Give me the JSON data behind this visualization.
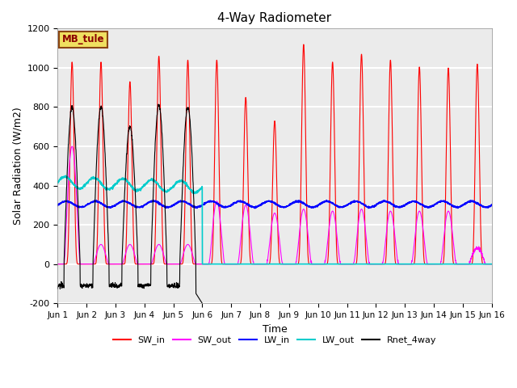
{
  "title": "4-Way Radiometer",
  "xlabel": "Time",
  "ylabel": "Solar Radiation (W/m2)",
  "ylim": [
    -200,
    1200
  ],
  "yticks": [
    -200,
    0,
    200,
    400,
    600,
    800,
    1000,
    1200
  ],
  "station_label": "MB_tule",
  "legend_entries": [
    "SW_in",
    "SW_out",
    "LW_in",
    "LW_out",
    "Rnet_4way"
  ],
  "colors": {
    "SW_in": "#ff0000",
    "SW_out": "#ff00ff",
    "LW_in": "#0000ff",
    "LW_out": "#00cccc",
    "Rnet_4way": "#000000"
  },
  "n_days": 15,
  "pts_per_day": 144,
  "background_color": "#ffffff",
  "figsize": [
    6.4,
    4.8
  ],
  "dpi": 100,
  "sw_in_peaks": [
    1030,
    1030,
    930,
    1060,
    1040,
    1040,
    850,
    730,
    1120,
    1030,
    1070,
    1040,
    1005,
    1000,
    1020
  ],
  "sw_out_peaks": [
    600,
    100,
    100,
    100,
    100,
    320,
    300,
    260,
    280,
    270,
    280,
    270,
    270,
    270,
    0
  ],
  "lw_in_base": 305,
  "lw_out_early": 420,
  "lw_out_late": 0,
  "rnet_peak_days": 5,
  "rnet_peak": 800
}
